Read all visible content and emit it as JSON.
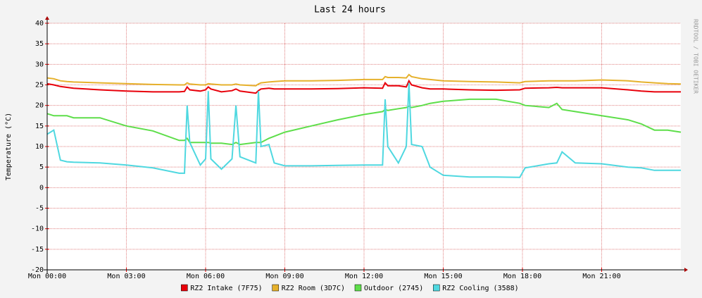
{
  "chart_data": {
    "type": "line",
    "title": "Last 24 hours",
    "y_label": "Temperature (°C)",
    "side_text": "RRDTOOL / TOBI OETIKER",
    "x": [
      0,
      0.25,
      0.5,
      0.75,
      1,
      2,
      3,
      4,
      5,
      5.2,
      5.3,
      5.4,
      5.8,
      6.0,
      6.1,
      6.2,
      6.6,
      7.0,
      7.15,
      7.3,
      7.9,
      8.0,
      8.1,
      8.4,
      8.6,
      9,
      10,
      11,
      12,
      12.7,
      12.8,
      12.9,
      13.3,
      13.6,
      13.7,
      13.8,
      14.2,
      14.5,
      15,
      16,
      17,
      17.9,
      18.1,
      19,
      19.3,
      19.5,
      20,
      21,
      22,
      22.5,
      23,
      23.5,
      24
    ],
    "series": [
      {
        "name": "RZ2 Intake (7F75)",
        "color": "#e8000b",
        "values": [
          25.3,
          25,
          24.6,
          24.4,
          24.2,
          23.8,
          23.5,
          23.3,
          23.3,
          23.4,
          24.5,
          23.8,
          23.5,
          23.8,
          24.5,
          24,
          23.3,
          23.6,
          24,
          23.5,
          23,
          23.6,
          24,
          24.2,
          24,
          24,
          24,
          24.1,
          24.3,
          24.2,
          25.5,
          24.8,
          24.8,
          24.5,
          26,
          25,
          24.3,
          24,
          24,
          23.8,
          23.7,
          23.8,
          24.2,
          24.3,
          24.4,
          24.3,
          24.3,
          24.3,
          23.8,
          23.5,
          23.3,
          23.3,
          23.3
        ]
      },
      {
        "name": "RZ2 Room (3D7C)",
        "color": "#e6b12c",
        "values": [
          26.7,
          26.5,
          26,
          25.8,
          25.7,
          25.5,
          25.3,
          25.1,
          25,
          25,
          25.5,
          25.2,
          25,
          25,
          25.3,
          25.2,
          25,
          25,
          25.2,
          25,
          24.8,
          25.2,
          25.5,
          25.7,
          25.8,
          26,
          26,
          26.1,
          26.3,
          26.3,
          27,
          26.8,
          26.8,
          26.7,
          27.5,
          27,
          26.5,
          26.3,
          26,
          25.8,
          25.7,
          25.5,
          25.8,
          26,
          26,
          26,
          26,
          26.2,
          26,
          25.7,
          25.5,
          25.3,
          25.2
        ]
      },
      {
        "name": "Outdoor (2745)",
        "color": "#5ede4a",
        "values": [
          18,
          17.5,
          17.5,
          17.5,
          17,
          17,
          15,
          13.8,
          11.5,
          11.5,
          12,
          11,
          11,
          11,
          11,
          10.8,
          10.8,
          10.5,
          11,
          10.5,
          11,
          11,
          11,
          12,
          12.5,
          13.5,
          15,
          16.5,
          17.8,
          18.5,
          19,
          18.8,
          19.2,
          19.5,
          19.8,
          19.5,
          20,
          20.5,
          21,
          21.5,
          21.5,
          20.5,
          20,
          19.5,
          20.5,
          19,
          18.5,
          17.5,
          16.5,
          15.5,
          14,
          14,
          13.5
        ]
      },
      {
        "name": "RZ2 Cooling (3588)",
        "color": "#4fd8e0",
        "values": [
          13,
          14,
          6.7,
          6.3,
          6.2,
          6,
          5.5,
          4.8,
          3.5,
          3.5,
          20,
          11,
          5.5,
          7,
          23.5,
          7,
          4.5,
          7,
          20,
          7.5,
          6,
          23.5,
          10,
          10.5,
          6,
          5.3,
          5.3,
          5.4,
          5.5,
          5.5,
          21.5,
          10,
          6,
          10,
          25.5,
          10.5,
          10,
          5,
          3,
          2.6,
          2.6,
          2.5,
          4.8,
          5.8,
          6,
          8.7,
          6,
          5.8,
          5,
          4.8,
          4.2,
          4.2,
          4.2
        ]
      }
    ],
    "xlim": [
      0,
      24
    ],
    "xticks": [
      {
        "value": 0,
        "label": "Mon 00:00"
      },
      {
        "value": 3,
        "label": "Mon 03:00"
      },
      {
        "value": 6,
        "label": "Mon 06:00"
      },
      {
        "value": 9,
        "label": "Mon 09:00"
      },
      {
        "value": 12,
        "label": "Mon 12:00"
      },
      {
        "value": 15,
        "label": "Mon 15:00"
      },
      {
        "value": 18,
        "label": "Mon 18:00"
      },
      {
        "value": 21,
        "label": "Mon 21:00"
      }
    ],
    "ylim": [
      -20,
      40
    ],
    "yticks": [
      -20,
      -15,
      -10,
      -5,
      0,
      5,
      10,
      15,
      20,
      25,
      30,
      35,
      40
    ],
    "grid": true
  }
}
